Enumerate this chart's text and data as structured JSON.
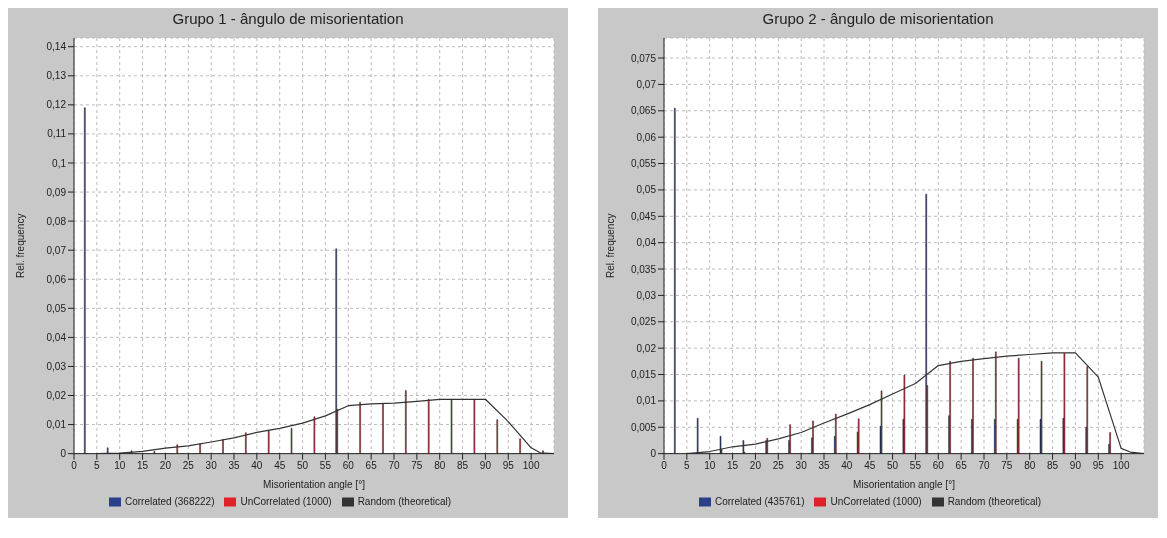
{
  "chart_data": [
    {
      "type": "bar",
      "title": "Grupo 1 - ângulo de misorientation",
      "xlabel": "Misorientation angle [°]",
      "ylabel": "Rel. frequency",
      "x": [
        2.5,
        7.5,
        12.5,
        17.5,
        22.5,
        27.5,
        32.5,
        37.5,
        42.5,
        47.5,
        52.5,
        57.5,
        62.5,
        67.5,
        72.5,
        77.5,
        82.5,
        87.5,
        92.5,
        97.5,
        102.5
      ],
      "series": [
        {
          "name": "Correlated (368222)",
          "color": "#2b3f8c",
          "values": [
            0.119,
            0.002,
            0,
            0,
            0,
            0,
            0,
            0,
            0,
            0,
            0,
            0.0705,
            0,
            0,
            0,
            0,
            0,
            0,
            0,
            0,
            0
          ]
        },
        {
          "name": "UnCorrelated (1000)",
          "color": "#e0202a",
          "values": [
            0,
            0,
            0.001,
            0.0008,
            0.0031,
            0.0034,
            0.0049,
            0.0072,
            0.0081,
            0.0087,
            0.0127,
            0.0153,
            0.0177,
            0.0171,
            0.0217,
            0.0187,
            0.0187,
            0.0187,
            0.0117,
            0.0051,
            0.001
          ]
        },
        {
          "name": "Random (theoretical)",
          "type": "line",
          "color": "#333333",
          "x": [
            5,
            10,
            15,
            20,
            25,
            30,
            35,
            40,
            45,
            50,
            55,
            60,
            65,
            70,
            75,
            80,
            85,
            90,
            95,
            100,
            102,
            105
          ],
          "values": [
            0,
            0.0002,
            0.0008,
            0.0019,
            0.0027,
            0.004,
            0.0054,
            0.0073,
            0.0087,
            0.0105,
            0.013,
            0.0165,
            0.0171,
            0.0174,
            0.018,
            0.0187,
            0.0187,
            0.0187,
            0.011,
            0.002,
            0.0003,
            0
          ]
        }
      ],
      "xlim": [
        0,
        105
      ],
      "xticks": [
        0,
        5,
        10,
        15,
        20,
        25,
        30,
        35,
        40,
        45,
        50,
        55,
        60,
        65,
        70,
        75,
        80,
        85,
        90,
        95,
        100
      ],
      "ylim": [
        0,
        0.143
      ],
      "yticks": [
        0,
        {
          "value": 0.01,
          "label": "0,01"
        },
        {
          "value": 0.02,
          "label": "0,02"
        },
        {
          "value": 0.03,
          "label": "0,03"
        },
        {
          "value": 0.04,
          "label": "0,04"
        },
        {
          "value": 0.05,
          "label": "0,05"
        },
        {
          "value": 0.06,
          "label": "0,06"
        },
        {
          "value": 0.07,
          "label": "0,07"
        },
        {
          "value": 0.08,
          "label": "0,08"
        },
        {
          "value": 0.09,
          "label": "0,09"
        },
        {
          "value": 0.1,
          "label": "0,1"
        },
        {
          "value": 0.11,
          "label": "0,11"
        },
        {
          "value": 0.12,
          "label": "0,12"
        },
        {
          "value": 0.13,
          "label": "0,13"
        },
        {
          "value": 0.14,
          "label": "0,14"
        }
      ],
      "grid": true,
      "legend": "bottom",
      "marker": "none"
    },
    {
      "type": "bar",
      "title": "Grupo 2 - ângulo de misorientation",
      "xlabel": "Misorientation angle [°]",
      "ylabel": "Rel. frequency",
      "x": [
        2.5,
        7.5,
        12.5,
        17.5,
        22.5,
        27.5,
        32.5,
        37.5,
        42.5,
        47.5,
        52.5,
        57.5,
        62.5,
        67.5,
        72.5,
        77.5,
        82.5,
        87.5,
        92.5,
        97.5,
        102.5
      ],
      "series": [
        {
          "name": "Correlated (435761)",
          "color": "#2b3f8c",
          "values": [
            0.0655,
            0.0067,
            0.0033,
            0.0025,
            0.0025,
            0.0025,
            0.003,
            0.0033,
            0.0041,
            0.0052,
            0.0065,
            0.0492,
            0.0072,
            0.0065,
            0.0065,
            0.0065,
            0.0065,
            0.0067,
            0.005,
            0.0018,
            0
          ]
        },
        {
          "name": "UnCorrelated (1000)",
          "color": "#e0202a",
          "values": [
            0,
            0,
            0.0008,
            0.0003,
            0.0029,
            0.0055,
            0.0062,
            0.0075,
            0.0066,
            0.0119,
            0.0149,
            0.0129,
            0.0175,
            0.0181,
            0.0193,
            0.0181,
            0.0175,
            0.019,
            0.0165,
            0.004,
            0
          ]
        },
        {
          "name": "Random (theoretical)",
          "type": "line",
          "color": "#333333",
          "x": [
            5,
            10,
            15,
            20,
            25,
            30,
            35,
            40,
            45,
            50,
            55,
            60,
            65,
            70,
            75,
            80,
            85,
            90,
            95,
            100,
            102,
            105
          ],
          "values": [
            0,
            0.0004,
            0.0013,
            0.0018,
            0.0028,
            0.004,
            0.0058,
            0.0075,
            0.0093,
            0.0113,
            0.0133,
            0.0167,
            0.0175,
            0.018,
            0.0185,
            0.0188,
            0.0191,
            0.0191,
            0.0145,
            0.001,
            0.0003,
            0
          ]
        }
      ],
      "xlim": [
        0,
        105
      ],
      "xticks": [
        0,
        5,
        10,
        15,
        20,
        25,
        30,
        35,
        40,
        45,
        50,
        55,
        60,
        65,
        70,
        75,
        80,
        85,
        90,
        95,
        100
      ],
      "ylim": [
        0,
        0.0788
      ],
      "yticks": [
        0,
        {
          "value": 0.005,
          "label": "0,005"
        },
        {
          "value": 0.01,
          "label": "0,01"
        },
        {
          "value": 0.015,
          "label": "0,015"
        },
        {
          "value": 0.02,
          "label": "0,02"
        },
        {
          "value": 0.025,
          "label": "0,025"
        },
        {
          "value": 0.03,
          "label": "0,03"
        },
        {
          "value": 0.035,
          "label": "0,035"
        },
        {
          "value": 0.04,
          "label": "0,04"
        },
        {
          "value": 0.045,
          "label": "0,045"
        },
        {
          "value": 0.05,
          "label": "0,05"
        },
        {
          "value": 0.055,
          "label": "0,055"
        },
        {
          "value": 0.06,
          "label": "0,06"
        },
        {
          "value": 0.065,
          "label": "0,065"
        },
        {
          "value": 0.07,
          "label": "0,07"
        },
        {
          "value": 0.075,
          "label": "0,075"
        }
      ],
      "grid": true,
      "legend": "bottom",
      "marker": "none"
    }
  ]
}
